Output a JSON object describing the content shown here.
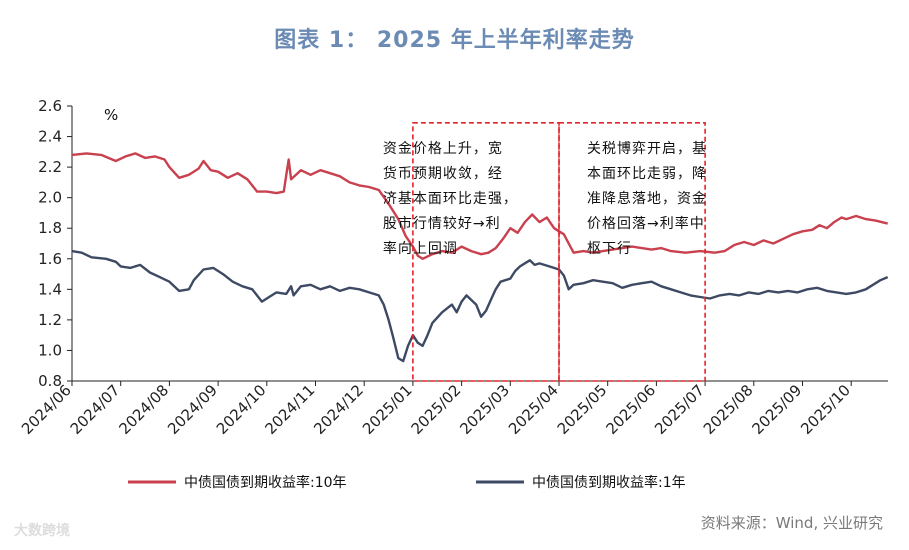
{
  "title": "图表 1： 2025 年上半年利率走势",
  "source": "资料来源：Wind, 兴业研究",
  "watermark": "大数跨境",
  "chart_data": {
    "type": "line",
    "unit": "%",
    "ylim": [
      0.8,
      2.6
    ],
    "yticks": [
      "0.8",
      "1.0",
      "1.2",
      "1.4",
      "1.6",
      "1.8",
      "2.0",
      "2.2",
      "2.4",
      "2.6"
    ],
    "categories": [
      "2024/06",
      "2024/07",
      "2024/08",
      "2024/09",
      "2024/10",
      "2024/11",
      "2024/12",
      "2025/01",
      "2025/02",
      "2025/03",
      "2025/04",
      "2025/05",
      "2025/06",
      "2025/07",
      "2025/08",
      "2025/09",
      "2025/10"
    ],
    "x_end": 16.75,
    "legend_position": "bottom",
    "series": [
      {
        "name": "中债国债到期收益率:10年",
        "color": "#c9404e",
        "points": [
          [
            0.0,
            2.28
          ],
          [
            0.3,
            2.29
          ],
          [
            0.6,
            2.28
          ],
          [
            0.9,
            2.24
          ],
          [
            1.1,
            2.27
          ],
          [
            1.3,
            2.29
          ],
          [
            1.5,
            2.26
          ],
          [
            1.7,
            2.27
          ],
          [
            1.9,
            2.25
          ],
          [
            2.0,
            2.2
          ],
          [
            2.2,
            2.13
          ],
          [
            2.4,
            2.15
          ],
          [
            2.6,
            2.19
          ],
          [
            2.7,
            2.24
          ],
          [
            2.85,
            2.18
          ],
          [
            3.0,
            2.17
          ],
          [
            3.2,
            2.13
          ],
          [
            3.4,
            2.16
          ],
          [
            3.6,
            2.12
          ],
          [
            3.8,
            2.04
          ],
          [
            4.0,
            2.04
          ],
          [
            4.2,
            2.03
          ],
          [
            4.35,
            2.04
          ],
          [
            4.4,
            2.15
          ],
          [
            4.45,
            2.25
          ],
          [
            4.5,
            2.12
          ],
          [
            4.7,
            2.18
          ],
          [
            4.9,
            2.15
          ],
          [
            5.1,
            2.18
          ],
          [
            5.3,
            2.16
          ],
          [
            5.5,
            2.14
          ],
          [
            5.7,
            2.1
          ],
          [
            5.9,
            2.08
          ],
          [
            6.1,
            2.07
          ],
          [
            6.3,
            2.05
          ],
          [
            6.5,
            1.96
          ],
          [
            6.7,
            1.86
          ],
          [
            6.85,
            1.75
          ],
          [
            7.0,
            1.68
          ],
          [
            7.1,
            1.62
          ],
          [
            7.2,
            1.6
          ],
          [
            7.4,
            1.63
          ],
          [
            7.6,
            1.65
          ],
          [
            7.8,
            1.64
          ],
          [
            8.0,
            1.68
          ],
          [
            8.2,
            1.65
          ],
          [
            8.4,
            1.63
          ],
          [
            8.55,
            1.64
          ],
          [
            8.7,
            1.67
          ],
          [
            8.85,
            1.73
          ],
          [
            9.0,
            1.8
          ],
          [
            9.15,
            1.77
          ],
          [
            9.3,
            1.84
          ],
          [
            9.45,
            1.89
          ],
          [
            9.6,
            1.84
          ],
          [
            9.75,
            1.87
          ],
          [
            9.9,
            1.8
          ],
          [
            10.0,
            1.78
          ],
          [
            10.1,
            1.76
          ],
          [
            10.2,
            1.7
          ],
          [
            10.3,
            1.64
          ],
          [
            10.5,
            1.65
          ],
          [
            10.7,
            1.64
          ],
          [
            10.9,
            1.65
          ],
          [
            11.1,
            1.66
          ],
          [
            11.3,
            1.67
          ],
          [
            11.5,
            1.68
          ],
          [
            11.7,
            1.67
          ],
          [
            11.9,
            1.66
          ],
          [
            12.1,
            1.67
          ],
          [
            12.3,
            1.65
          ],
          [
            12.6,
            1.64
          ],
          [
            12.9,
            1.65
          ],
          [
            13.2,
            1.64
          ],
          [
            13.4,
            1.65
          ],
          [
            13.6,
            1.69
          ],
          [
            13.8,
            1.71
          ],
          [
            14.0,
            1.69
          ],
          [
            14.2,
            1.72
          ],
          [
            14.4,
            1.7
          ],
          [
            14.6,
            1.73
          ],
          [
            14.8,
            1.76
          ],
          [
            15.0,
            1.78
          ],
          [
            15.2,
            1.79
          ],
          [
            15.35,
            1.82
          ],
          [
            15.5,
            1.8
          ],
          [
            15.65,
            1.84
          ],
          [
            15.8,
            1.87
          ],
          [
            15.9,
            1.86
          ],
          [
            16.1,
            1.88
          ],
          [
            16.3,
            1.86
          ],
          [
            16.5,
            1.85
          ],
          [
            16.75,
            1.83
          ]
        ]
      },
      {
        "name": "中债国债到期收益率:1年",
        "color": "#3e4a63",
        "points": [
          [
            0.0,
            1.65
          ],
          [
            0.2,
            1.64
          ],
          [
            0.4,
            1.61
          ],
          [
            0.7,
            1.6
          ],
          [
            0.9,
            1.58
          ],
          [
            1.0,
            1.55
          ],
          [
            1.2,
            1.54
          ],
          [
            1.4,
            1.56
          ],
          [
            1.6,
            1.51
          ],
          [
            1.8,
            1.48
          ],
          [
            2.0,
            1.45
          ],
          [
            2.2,
            1.39
          ],
          [
            2.4,
            1.4
          ],
          [
            2.5,
            1.46
          ],
          [
            2.7,
            1.53
          ],
          [
            2.9,
            1.54
          ],
          [
            3.1,
            1.5
          ],
          [
            3.3,
            1.45
          ],
          [
            3.5,
            1.42
          ],
          [
            3.7,
            1.4
          ],
          [
            3.9,
            1.32
          ],
          [
            4.0,
            1.34
          ],
          [
            4.2,
            1.38
          ],
          [
            4.4,
            1.37
          ],
          [
            4.5,
            1.42
          ],
          [
            4.55,
            1.36
          ],
          [
            4.7,
            1.42
          ],
          [
            4.9,
            1.43
          ],
          [
            5.1,
            1.4
          ],
          [
            5.3,
            1.42
          ],
          [
            5.5,
            1.39
          ],
          [
            5.7,
            1.41
          ],
          [
            5.9,
            1.4
          ],
          [
            6.1,
            1.38
          ],
          [
            6.3,
            1.36
          ],
          [
            6.4,
            1.3
          ],
          [
            6.5,
            1.2
          ],
          [
            6.6,
            1.08
          ],
          [
            6.7,
            0.95
          ],
          [
            6.8,
            0.93
          ],
          [
            6.9,
            1.03
          ],
          [
            7.0,
            1.1
          ],
          [
            7.1,
            1.05
          ],
          [
            7.2,
            1.03
          ],
          [
            7.3,
            1.1
          ],
          [
            7.4,
            1.18
          ],
          [
            7.6,
            1.25
          ],
          [
            7.8,
            1.3
          ],
          [
            7.9,
            1.25
          ],
          [
            8.0,
            1.32
          ],
          [
            8.1,
            1.36
          ],
          [
            8.2,
            1.33
          ],
          [
            8.3,
            1.3
          ],
          [
            8.4,
            1.22
          ],
          [
            8.5,
            1.26
          ],
          [
            8.6,
            1.33
          ],
          [
            8.7,
            1.4
          ],
          [
            8.8,
            1.45
          ],
          [
            9.0,
            1.47
          ],
          [
            9.1,
            1.52
          ],
          [
            9.2,
            1.55
          ],
          [
            9.4,
            1.59
          ],
          [
            9.5,
            1.56
          ],
          [
            9.6,
            1.57
          ],
          [
            9.8,
            1.55
          ],
          [
            10.0,
            1.53
          ],
          [
            10.1,
            1.49
          ],
          [
            10.2,
            1.4
          ],
          [
            10.3,
            1.43
          ],
          [
            10.5,
            1.44
          ],
          [
            10.7,
            1.46
          ],
          [
            10.9,
            1.45
          ],
          [
            11.1,
            1.44
          ],
          [
            11.3,
            1.41
          ],
          [
            11.5,
            1.43
          ],
          [
            11.7,
            1.44
          ],
          [
            11.9,
            1.45
          ],
          [
            12.1,
            1.42
          ],
          [
            12.3,
            1.4
          ],
          [
            12.5,
            1.38
          ],
          [
            12.7,
            1.36
          ],
          [
            12.9,
            1.35
          ],
          [
            13.1,
            1.34
          ],
          [
            13.3,
            1.36
          ],
          [
            13.5,
            1.37
          ],
          [
            13.7,
            1.36
          ],
          [
            13.9,
            1.38
          ],
          [
            14.1,
            1.37
          ],
          [
            14.3,
            1.39
          ],
          [
            14.5,
            1.38
          ],
          [
            14.7,
            1.39
          ],
          [
            14.9,
            1.38
          ],
          [
            15.1,
            1.4
          ],
          [
            15.3,
            1.41
          ],
          [
            15.5,
            1.39
          ],
          [
            15.7,
            1.38
          ],
          [
            15.9,
            1.37
          ],
          [
            16.1,
            1.38
          ],
          [
            16.3,
            1.4
          ],
          [
            16.5,
            1.44
          ],
          [
            16.6,
            1.46
          ],
          [
            16.75,
            1.48
          ]
        ]
      }
    ],
    "annotations": [
      {
        "x_start": 7.0,
        "x_end": 10.0,
        "y_start": 0.8,
        "y_end": 2.49,
        "lines": [
          "资金价格上升，宽",
          "货币预期收敛，经",
          "济基本面环比走强，",
          "股市行情较好→利",
          "率向上回调"
        ]
      },
      {
        "x_start": 10.0,
        "x_end": 13.0,
        "y_start": 0.8,
        "y_end": 2.49,
        "lines": [
          "关税博弈开启，基",
          "本面环比走弱，降",
          "准降息落地，资金",
          "价格回落→利率中",
          "枢下行"
        ]
      }
    ]
  }
}
